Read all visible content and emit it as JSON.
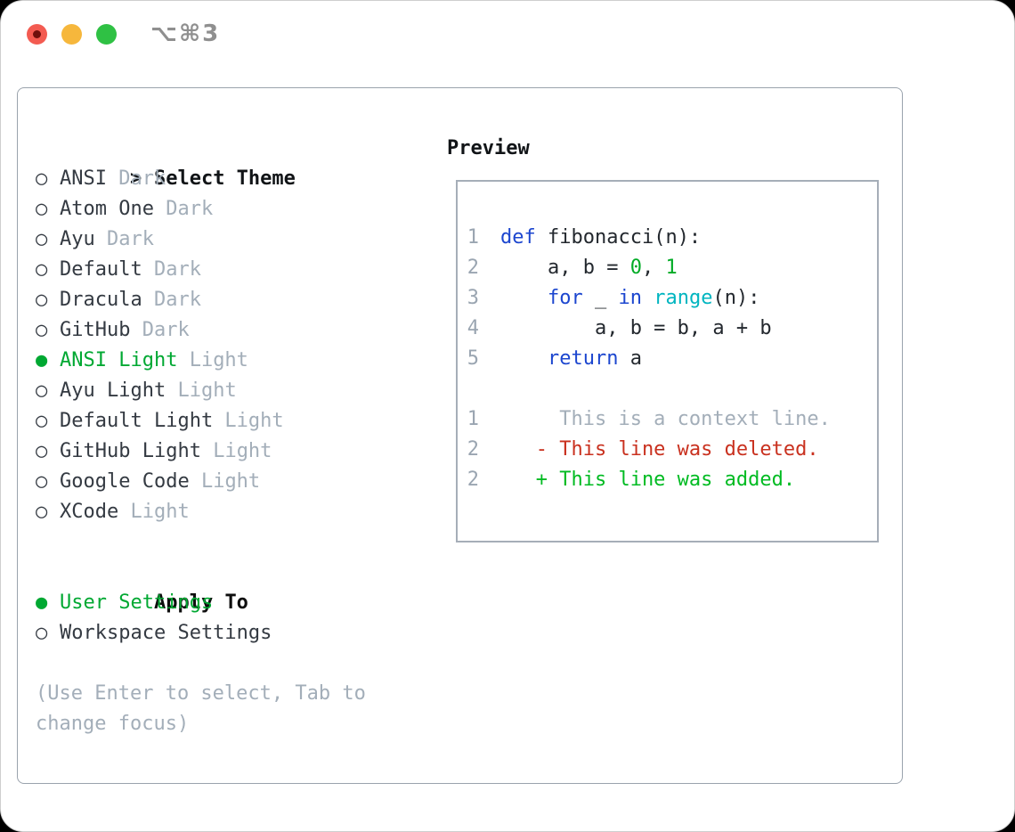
{
  "window": {
    "title": "⌥⌘3",
    "traffic_lights": [
      {
        "name": "close-button",
        "color": "#f35b51"
      },
      {
        "name": "minimize-button",
        "color": "#f6b73c"
      },
      {
        "name": "zoom-button",
        "color": "#2fc144"
      }
    ]
  },
  "icons": {
    "radio_selected": "●",
    "radio_unselected": "○",
    "focus_marker": ">"
  },
  "left": {
    "select_theme_heading": {
      "marker": ">",
      "label": "Select Theme"
    },
    "themes": [
      {
        "name": "ANSI",
        "variant": "Dark",
        "selected": false
      },
      {
        "name": "Atom One",
        "variant": "Dark",
        "selected": false
      },
      {
        "name": "Ayu",
        "variant": "Dark",
        "selected": false
      },
      {
        "name": "Default",
        "variant": "Dark",
        "selected": false
      },
      {
        "name": "Dracula",
        "variant": "Dark",
        "selected": false
      },
      {
        "name": "GitHub",
        "variant": "Dark",
        "selected": false
      },
      {
        "name": "ANSI Light",
        "variant": "Light",
        "selected": true
      },
      {
        "name": "Ayu Light",
        "variant": "Light",
        "selected": false
      },
      {
        "name": "Default Light",
        "variant": "Light",
        "selected": false
      },
      {
        "name": "GitHub Light",
        "variant": "Light",
        "selected": false
      },
      {
        "name": "Google Code",
        "variant": "Light",
        "selected": false
      },
      {
        "name": "XCode",
        "variant": "Light",
        "selected": false
      }
    ],
    "apply_heading": "Apply To",
    "apply_options": [
      {
        "name": "User Settings",
        "selected": true
      },
      {
        "name": "Workspace Settings",
        "selected": false
      }
    ],
    "help_lines": [
      "(Use Enter to select, Tab to",
      "change focus)"
    ]
  },
  "preview": {
    "heading": "Preview",
    "code_lines": [
      {
        "num": "1",
        "tokens": [
          {
            "t": "def",
            "c": "kw"
          },
          {
            "t": " fibonacci(n):",
            "c": "fg"
          }
        ]
      },
      {
        "num": "2",
        "tokens": [
          {
            "t": "    a, b = ",
            "c": "fg"
          },
          {
            "t": "0",
            "c": "num"
          },
          {
            "t": ", ",
            "c": "fg"
          },
          {
            "t": "1",
            "c": "num"
          }
        ]
      },
      {
        "num": "3",
        "tokens": [
          {
            "t": "    ",
            "c": "fg"
          },
          {
            "t": "for",
            "c": "kw"
          },
          {
            "t": " _ ",
            "c": "fg"
          },
          {
            "t": "in",
            "c": "kw"
          },
          {
            "t": " ",
            "c": "fg"
          },
          {
            "t": "range",
            "c": "fn"
          },
          {
            "t": "(n):",
            "c": "fg"
          }
        ]
      },
      {
        "num": "4",
        "tokens": [
          {
            "t": "        a, b = b, a + b",
            "c": "fg"
          }
        ]
      },
      {
        "num": "5",
        "tokens": [
          {
            "t": "    ",
            "c": "fg"
          },
          {
            "t": "return",
            "c": "kw"
          },
          {
            "t": " a",
            "c": "fg"
          }
        ]
      }
    ],
    "diff_lines": [
      {
        "num": "1",
        "tokens": [
          {
            "t": "     This is a context line.",
            "c": "ctx"
          }
        ]
      },
      {
        "num": "2",
        "tokens": [
          {
            "t": "   - This line was deleted.",
            "c": "del"
          }
        ]
      },
      {
        "num": "2",
        "tokens": [
          {
            "t": "   + This line was added.",
            "c": "add"
          }
        ]
      }
    ]
  },
  "colors": {
    "accent_green": "#00a832",
    "keyword_blue": "#1c46cf",
    "builtin_cyan": "#00b5c0",
    "number_green": "#00ab25",
    "deleted_red": "#c9311f",
    "added_green": "#00bb22",
    "muted_gray": "#a3aeb9",
    "text_dark": "#343a42",
    "border_gray": "#9aa3ad",
    "traffic_red": "#f35b51",
    "traffic_yellow": "#f6b73c",
    "traffic_green": "#2fc144"
  }
}
